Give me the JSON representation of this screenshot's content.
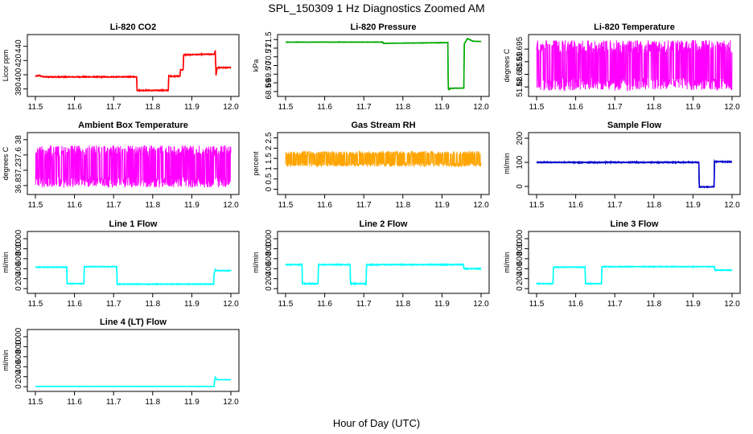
{
  "figure": {
    "title": "SPL_150309  1 Hz Diagnostics Zoomed AM",
    "xlabel": "Hour of Day (UTC)"
  },
  "chart_data": [
    {
      "type": "line",
      "title": "Li-820 CO2",
      "ylabel": "Licor ppm",
      "color": "#ff0000",
      "xlim": [
        11.5,
        12.0
      ],
      "ylim": [
        374,
        452
      ],
      "xticks": [
        "11.5",
        "11.6",
        "11.7",
        "11.8",
        "11.9",
        "12.0"
      ],
      "yticks": [
        380,
        400,
        420,
        440
      ],
      "noise": 0.6,
      "series": [
        {
          "x": [
            11.5,
            11.51,
            11.52,
            11.759,
            11.76,
            11.84,
            11.841,
            11.87,
            11.871,
            11.878,
            11.879,
            11.958,
            11.96,
            11.962,
            11.965,
            11.98,
            12.0
          ],
          "y": [
            398,
            399,
            397,
            397,
            378,
            378,
            398,
            398,
            407,
            407,
            428,
            429,
            434,
            399,
            410,
            410,
            410
          ]
        }
      ]
    },
    {
      "type": "line",
      "title": "Li-820 Pressure",
      "ylabel": "kPa",
      "color": "#00aa00",
      "xlim": [
        11.5,
        12.0
      ],
      "ylim": [
        68.4,
        71.6
      ],
      "xticks": [
        "11.5",
        "11.6",
        "11.7",
        "11.8",
        "11.9",
        "12.0"
      ],
      "yticks": [
        68.5,
        69.0,
        69.5,
        70.0,
        70.5,
        71.0,
        71.5
      ],
      "noise": 0.01,
      "series": [
        {
          "x": [
            11.5,
            11.749,
            11.75,
            11.915,
            11.916,
            11.919,
            11.92,
            11.956,
            11.957,
            11.965,
            11.98,
            12.0
          ],
          "y": [
            71.35,
            71.35,
            71.28,
            71.32,
            68.65,
            68.6,
            68.68,
            68.7,
            71.25,
            71.55,
            71.4,
            71.38
          ]
        }
      ]
    },
    {
      "type": "line",
      "title": "Li-820 Temperature",
      "ylabel": "degrees C",
      "color": "#ff00ff",
      "xlim": [
        11.5,
        12.0
      ],
      "ylim": [
        51.6775,
        51.6995
      ],
      "xticks": [
        "11.5",
        "11.6",
        "11.7",
        "11.8",
        "11.9",
        "12.0"
      ],
      "yticks": [
        51.68,
        51.685,
        51.69,
        51.695
      ],
      "band": [
        51.6785,
        51.6985
      ]
    },
    {
      "type": "line",
      "title": "Ambient Box Temperature",
      "ylabel": "degrees C",
      "color": "#ff00ff",
      "xlim": [
        11.5,
        12.0
      ],
      "ylim": [
        36.65,
        38.1
      ],
      "xticks": [
        "11.5",
        "11.6",
        "11.7",
        "11.8",
        "11.9",
        "12.0"
      ],
      "yticks": [
        36.8,
        37.2,
        37.6,
        38.0
      ],
      "band": [
        36.75,
        37.85
      ]
    },
    {
      "type": "line",
      "title": "Gas Stream RH",
      "ylabel": "percent",
      "color": "#ffa500",
      "xlim": [
        11.5,
        12.0
      ],
      "ylim": [
        -0.1,
        2.6
      ],
      "xticks": [
        "11.5",
        "11.6",
        "11.7",
        "11.8",
        "11.9",
        "12.0"
      ],
      "yticks": [
        0.0,
        0.5,
        1.0,
        1.5,
        2.0,
        2.5
      ],
      "band": [
        1.1,
        1.85
      ]
    },
    {
      "type": "line",
      "title": "Sample Flow",
      "ylabel": "ml/min",
      "color": "#0000cc",
      "xlim": [
        11.5,
        12.0
      ],
      "ylim": [
        -20,
        210
      ],
      "xticks": [
        "11.5",
        "11.6",
        "11.7",
        "11.8",
        "11.9",
        "12.0"
      ],
      "yticks": [
        0,
        100,
        200
      ],
      "noise": 2,
      "series": [
        {
          "x": [
            11.5,
            11.915,
            11.916,
            11.954,
            11.955,
            12.0
          ],
          "y": [
            100,
            100,
            -2,
            -2,
            103,
            102
          ]
        }
      ]
    },
    {
      "type": "line",
      "title": "Line 1 Flow",
      "ylabel": "ml/min",
      "color": "#00ffff",
      "xlim": [
        11.5,
        12.0
      ],
      "ylim": [
        -30,
        1080
      ],
      "xticks": [
        "11.5",
        "11.6",
        "11.7",
        "11.8",
        "11.9",
        "12.0"
      ],
      "yticks": [
        0,
        200,
        400,
        600,
        800,
        1000
      ],
      "noise": 6,
      "series": [
        {
          "x": [
            11.5,
            11.58,
            11.581,
            11.624,
            11.625,
            11.708,
            11.709,
            11.956,
            11.957,
            11.96,
            11.965,
            12.0
          ],
          "y": [
            430,
            430,
            100,
            100,
            440,
            440,
            90,
            90,
            300,
            380,
            360,
            360
          ]
        }
      ]
    },
    {
      "type": "line",
      "title": "Line 2 Flow",
      "ylabel": "ml/min",
      "color": "#00ffff",
      "xlim": [
        11.5,
        12.0
      ],
      "ylim": [
        -30,
        1080
      ],
      "xticks": [
        "11.5",
        "11.6",
        "11.7",
        "11.8",
        "11.9",
        "12.0"
      ],
      "yticks": [
        0,
        200,
        400,
        600,
        800,
        1000
      ],
      "noise": 8,
      "series": [
        {
          "x": [
            11.5,
            11.542,
            11.543,
            11.583,
            11.584,
            11.665,
            11.666,
            11.706,
            11.707,
            11.955,
            11.956,
            12.0
          ],
          "y": [
            480,
            480,
            100,
            100,
            480,
            480,
            100,
            100,
            480,
            480,
            400,
            400
          ]
        }
      ]
    },
    {
      "type": "line",
      "title": "Line 3 Flow",
      "ylabel": "ml/min",
      "color": "#00ffff",
      "xlim": [
        11.5,
        12.0
      ],
      "ylim": [
        -30,
        1080
      ],
      "xticks": [
        "11.5",
        "11.6",
        "11.7",
        "11.8",
        "11.9",
        "12.0"
      ],
      "yticks": [
        0,
        200,
        400,
        600,
        800,
        1000
      ],
      "noise": 6,
      "series": [
        {
          "x": [
            11.5,
            11.542,
            11.543,
            11.624,
            11.625,
            11.666,
            11.667,
            11.955,
            11.956,
            12.0
          ],
          "y": [
            100,
            100,
            430,
            430,
            100,
            100,
            440,
            440,
            370,
            370
          ]
        }
      ]
    },
    {
      "type": "line",
      "title": "Line 4 (LT) Flow",
      "ylabel": "ml/min",
      "color": "#00ffff",
      "xlim": [
        11.5,
        12.0
      ],
      "ylim": [
        -30,
        1080
      ],
      "xticks": [
        "11.5",
        "11.6",
        "11.7",
        "11.8",
        "11.9",
        "12.0"
      ],
      "yticks": [
        0,
        200,
        400,
        600,
        800,
        1000
      ],
      "noise": 1,
      "series": [
        {
          "x": [
            11.5,
            11.957,
            11.958,
            11.96,
            11.965,
            12.0
          ],
          "y": [
            5,
            5,
            100,
            190,
            140,
            140
          ]
        }
      ]
    }
  ]
}
